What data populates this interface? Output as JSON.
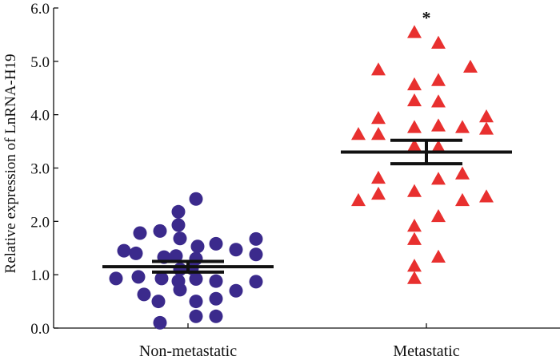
{
  "chart_data": {
    "type": "scatter",
    "title": "",
    "xlabel": "",
    "ylabel": "Relative expression of LnRNA-H19",
    "ylim": [
      0.0,
      6.0
    ],
    "yticks": [
      "0.0",
      "1.0",
      "2.0",
      "3.0",
      "4.0",
      "5.0",
      "6.0"
    ],
    "yticks_values": [
      0,
      1,
      2,
      3,
      4,
      5,
      6
    ],
    "grid": false,
    "categories": [
      "Non-metastatic",
      "Metastatic"
    ],
    "series": [
      {
        "name": "Non-metastatic",
        "marker": "circle",
        "color": "#3b2a8c",
        "mean": 1.15,
        "sem": 0.1,
        "points": [
          {
            "offset": -0.8,
            "value": 1.45
          },
          {
            "offset": -0.6,
            "value": 1.78
          },
          {
            "offset": -0.35,
            "value": 1.82
          },
          {
            "offset": -0.65,
            "value": 1.4
          },
          {
            "offset": -0.9,
            "value": 0.93
          },
          {
            "offset": -0.62,
            "value": 0.96
          },
          {
            "offset": -0.55,
            "value": 0.63
          },
          {
            "offset": -0.3,
            "value": 1.33
          },
          {
            "offset": -0.33,
            "value": 0.93
          },
          {
            "offset": -0.37,
            "value": 0.5
          },
          {
            "offset": -0.35,
            "value": 0.1
          },
          {
            "offset": -0.12,
            "value": 2.18
          },
          {
            "offset": -0.12,
            "value": 1.93
          },
          {
            "offset": -0.1,
            "value": 1.68
          },
          {
            "offset": -0.15,
            "value": 1.35
          },
          {
            "offset": -0.1,
            "value": 1.1
          },
          {
            "offset": -0.12,
            "value": 0.88
          },
          {
            "offset": -0.1,
            "value": 0.72
          },
          {
            "offset": 0.05,
            "value": 1.12
          },
          {
            "offset": 0.1,
            "value": 2.42
          },
          {
            "offset": 0.12,
            "value": 1.53
          },
          {
            "offset": 0.1,
            "value": 1.3
          },
          {
            "offset": 0.1,
            "value": 0.92
          },
          {
            "offset": 0.1,
            "value": 0.5
          },
          {
            "offset": 0.1,
            "value": 0.22
          },
          {
            "offset": 0.35,
            "value": 1.58
          },
          {
            "offset": 0.35,
            "value": 0.88
          },
          {
            "offset": 0.35,
            "value": 0.55
          },
          {
            "offset": 0.35,
            "value": 0.22
          },
          {
            "offset": 0.6,
            "value": 1.47
          },
          {
            "offset": 0.6,
            "value": 0.7
          },
          {
            "offset": 0.85,
            "value": 1.67
          },
          {
            "offset": 0.85,
            "value": 1.38
          },
          {
            "offset": 0.85,
            "value": 0.87
          }
        ]
      },
      {
        "name": "Metastatic",
        "marker": "triangle",
        "color": "#e8302f",
        "mean": 3.3,
        "sem": 0.22,
        "significance": "*",
        "points": [
          {
            "offset": -0.85,
            "value": 3.62
          },
          {
            "offset": -0.85,
            "value": 2.38
          },
          {
            "offset": -0.6,
            "value": 4.83
          },
          {
            "offset": -0.6,
            "value": 3.92
          },
          {
            "offset": -0.6,
            "value": 3.62
          },
          {
            "offset": -0.6,
            "value": 2.8
          },
          {
            "offset": -0.6,
            "value": 2.5
          },
          {
            "offset": -0.15,
            "value": 5.53
          },
          {
            "offset": -0.15,
            "value": 4.55
          },
          {
            "offset": -0.15,
            "value": 4.25
          },
          {
            "offset": -0.15,
            "value": 3.75
          },
          {
            "offset": -0.15,
            "value": 3.4
          },
          {
            "offset": -0.15,
            "value": 2.55
          },
          {
            "offset": -0.15,
            "value": 1.9
          },
          {
            "offset": -0.15,
            "value": 1.65
          },
          {
            "offset": -0.15,
            "value": 1.15
          },
          {
            "offset": -0.15,
            "value": 0.92
          },
          {
            "offset": 0.15,
            "value": 5.33
          },
          {
            "offset": 0.15,
            "value": 4.63
          },
          {
            "offset": 0.15,
            "value": 4.23
          },
          {
            "offset": 0.15,
            "value": 3.78
          },
          {
            "offset": 0.15,
            "value": 2.78
          },
          {
            "offset": 0.15,
            "value": 3.38
          },
          {
            "offset": 0.15,
            "value": 2.08
          },
          {
            "offset": 0.15,
            "value": 1.32
          },
          {
            "offset": 0.55,
            "value": 4.88
          },
          {
            "offset": 0.45,
            "value": 3.75
          },
          {
            "offset": 0.45,
            "value": 2.88
          },
          {
            "offset": 0.45,
            "value": 2.38
          },
          {
            "offset": 0.75,
            "value": 3.95
          },
          {
            "offset": 0.75,
            "value": 3.72
          },
          {
            "offset": 0.75,
            "value": 2.45
          }
        ]
      }
    ]
  }
}
